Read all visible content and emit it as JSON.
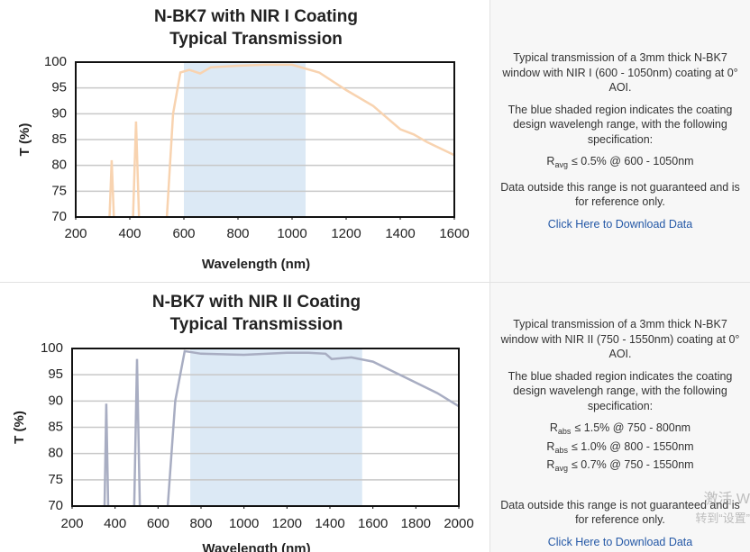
{
  "chart_data": [
    {
      "type": "line",
      "title": "N-BK7 with NIR I Coating",
      "subtitle": "Typical Transmission",
      "x_label": "Wavelength (nm)",
      "y_label": "T (%)",
      "x": [
        325,
        333,
        341,
        380,
        412,
        423,
        434,
        480,
        537,
        560,
        587,
        620,
        660,
        700,
        800,
        900,
        1000,
        1100,
        1200,
        1300,
        1400,
        1450,
        1500,
        1600
      ],
      "values": [
        70,
        81,
        70,
        null,
        70,
        88.5,
        70,
        null,
        70,
        90,
        98,
        98.5,
        97.8,
        99,
        99.3,
        99.5,
        99.5,
        98,
        94.6,
        91.5,
        87,
        86,
        84.5,
        82
      ],
      "color": "#f8d3b0",
      "shaded_range": [
        600,
        1050
      ],
      "shade_color": "#dce9f5",
      "xlim": [
        200,
        1600
      ],
      "xticks": [
        200,
        400,
        600,
        800,
        1000,
        1200,
        1400,
        1600
      ],
      "ylim": [
        70,
        100
      ],
      "yticks": [
        70,
        75,
        80,
        85,
        90,
        95,
        100
      ],
      "grid": true
    },
    {
      "type": "line",
      "title": "N-BK7 with NIR II Coating",
      "subtitle": "Typical Transmission",
      "x_label": "Wavelength (nm)",
      "y_label": "T (%)",
      "x": [
        351,
        359,
        368,
        420,
        489,
        502,
        515,
        580,
        645,
        680,
        724,
        800,
        1000,
        1200,
        1300,
        1380,
        1408,
        1500,
        1600,
        1700,
        1800,
        1900,
        2000
      ],
      "values": [
        70,
        89.5,
        70,
        null,
        70,
        98,
        70,
        null,
        70,
        90,
        99.5,
        99,
        98.8,
        99.2,
        99.2,
        99,
        98,
        98.3,
        97.5,
        95.5,
        93.5,
        91.5,
        89
      ],
      "color": "#a8adc2",
      "shaded_range": [
        750,
        1550
      ],
      "shade_color": "#dce9f5",
      "xlim": [
        200,
        2000
      ],
      "xticks": [
        200,
        400,
        600,
        800,
        1000,
        1200,
        1400,
        1600,
        1800,
        2000
      ],
      "ylim": [
        70,
        100
      ],
      "yticks": [
        70,
        75,
        80,
        85,
        90,
        95,
        100
      ],
      "grid": true
    }
  ],
  "descriptions": [
    {
      "paragraphs": [
        "Typical transmission of a 3mm thick N-BK7 window with NIR I (600 - 1050nm) coating at 0° AOI.",
        "The blue shaded region indicates the coating design wavelengh range, with the following specification:"
      ],
      "specs": [
        {
          "symbol": "R",
          "subscript": "avg",
          "text": "≤ 0.5% @ 600 - 1050nm"
        }
      ],
      "note": "Data outside this range is not guaranteed and is for reference only.",
      "link": "Click Here to Download Data"
    },
    {
      "paragraphs": [
        "Typical transmission of a 3mm thick N-BK7 window with NIR II (750 - 1550nm) coating at 0° AOI.",
        "The blue shaded region indicates the coating design wavelengh range, with the following specification:"
      ],
      "specs": [
        {
          "symbol": "R",
          "subscript": "abs",
          "text": "≤ 1.5% @ 750 - 800nm"
        },
        {
          "symbol": "R",
          "subscript": "abs",
          "text": "≤ 1.0% @ 800 - 1550nm"
        },
        {
          "symbol": "R",
          "subscript": "avg",
          "text": "≤ 0.7% @ 750 - 1550nm"
        }
      ],
      "note": "Data outside this range is not guaranteed and is for reference only.",
      "link": "Click Here to Download Data"
    }
  ],
  "watermark": [
    "激活 W",
    "转到“设置”"
  ]
}
